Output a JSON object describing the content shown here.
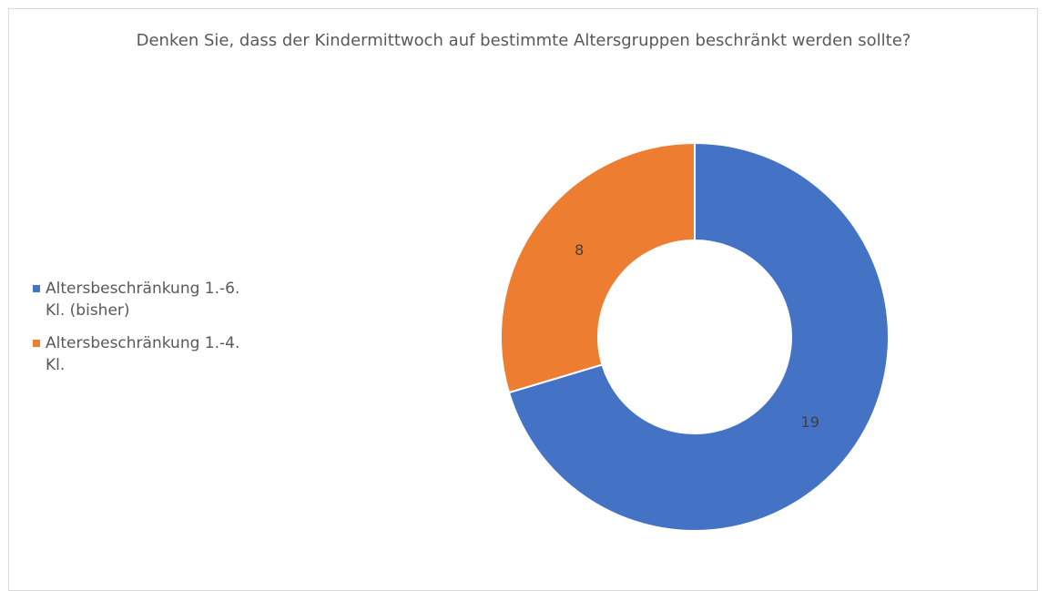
{
  "chart_data": {
    "type": "donut",
    "title": "Denken Sie, dass der Kindermittwoch auf bestimmte Altersgruppen beschränkt werden sollte?",
    "categories": [
      "Altersbeschränkung 1.-6. Kl. (bisher)",
      "Altersbeschränkung 1.-4. Kl."
    ],
    "values": [
      19,
      8
    ],
    "colors": [
      "#4472c4",
      "#ed7d31"
    ],
    "legend": "left"
  }
}
